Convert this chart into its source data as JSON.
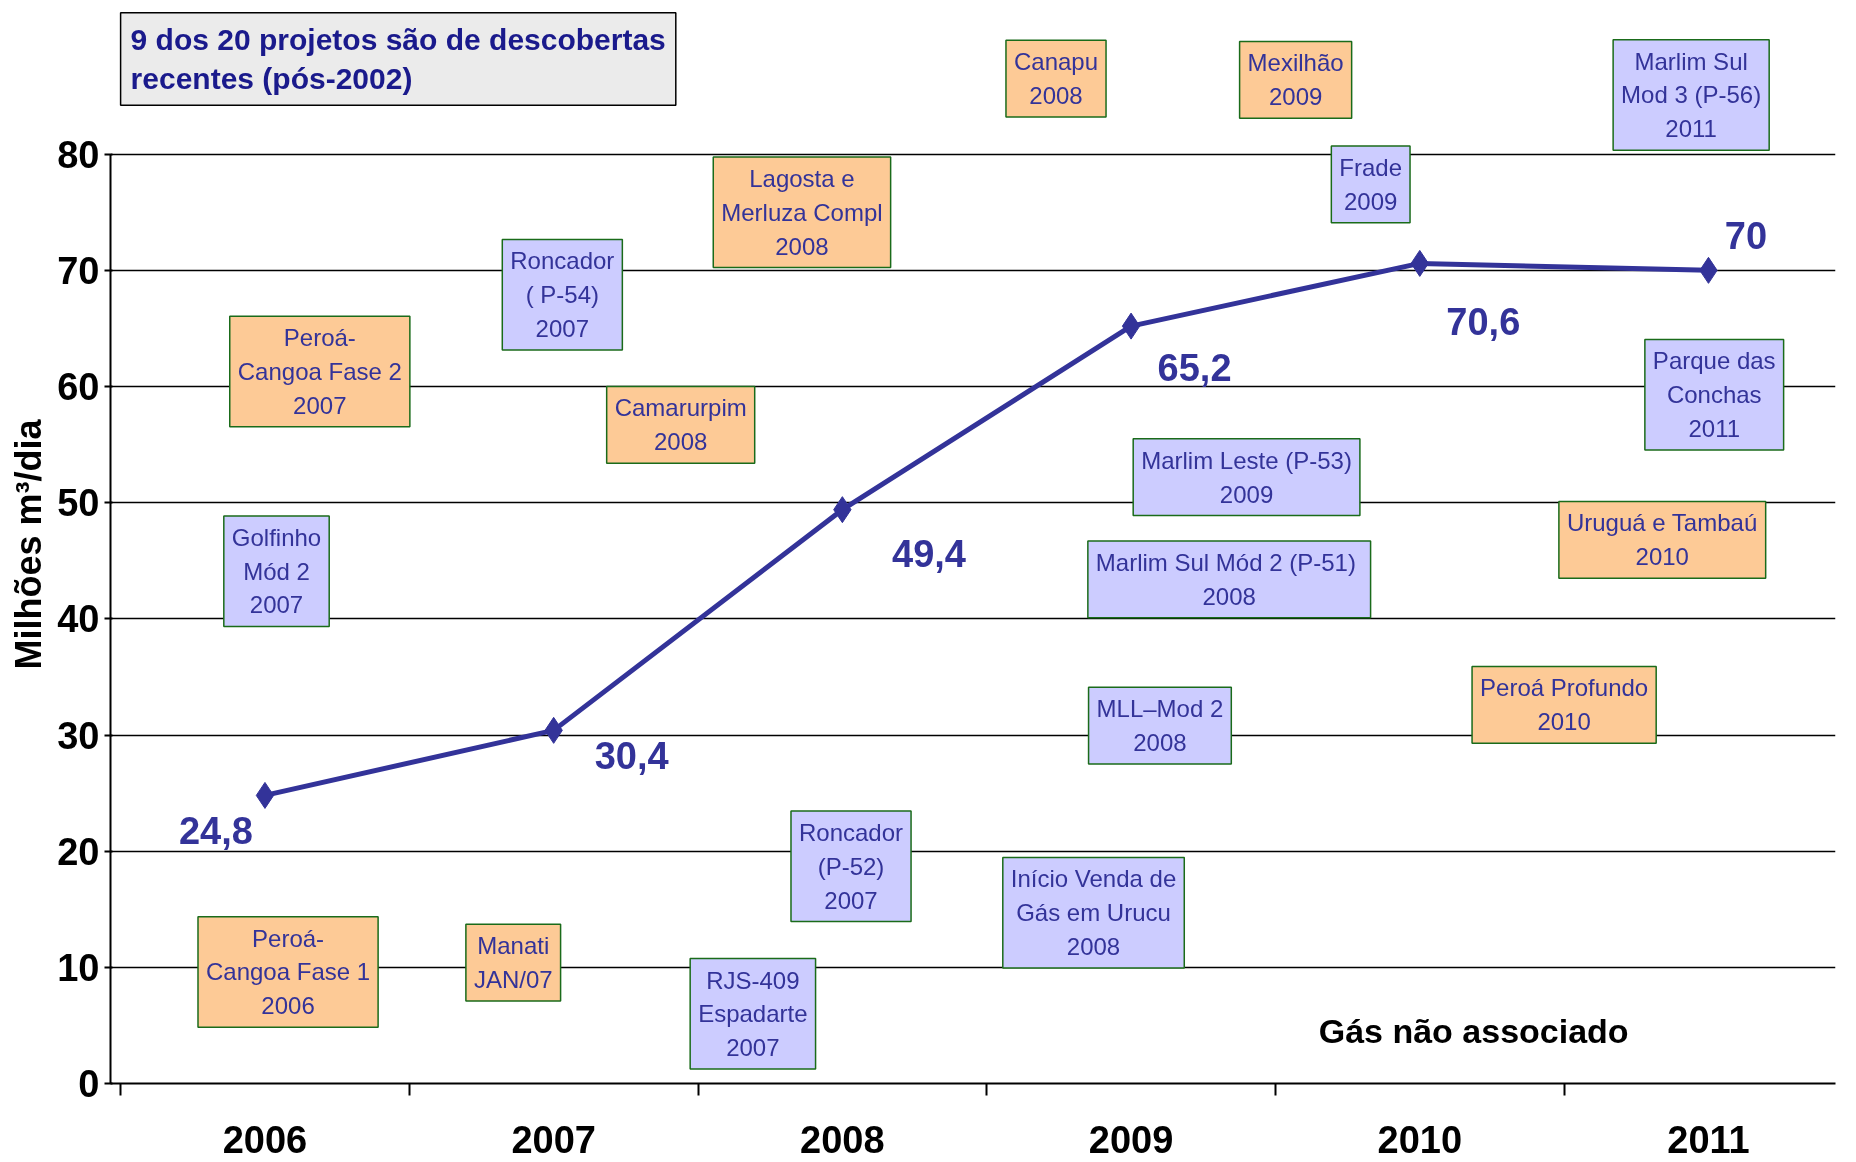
{
  "chart_data": {
    "type": "line",
    "categories": [
      "2006",
      "2007",
      "2008",
      "2009",
      "2010",
      "2011"
    ],
    "values": [
      24.8,
      30.4,
      49.4,
      65.2,
      70.6,
      70
    ],
    "value_labels": [
      "24,8",
      "30,4",
      "49,4",
      "65,2",
      "70,6",
      "70"
    ],
    "color": "#333399",
    "marker": "diamond",
    "grid": "y",
    "ylim": [
      0,
      80
    ],
    "yticks": [
      0,
      10,
      20,
      30,
      40,
      50,
      60,
      70,
      80
    ],
    "ylabel": "Milhões m³/dia",
    "annotations": [
      "9 dos 20 projetos são de descobertas\nrecentes (pós-2002)",
      "Gás não associado",
      "Peroá-\nCangoa Fase 1\n2006",
      "Golfinho\nMód 2\n2007",
      "Peroá-\nCangoa Fase 2\n2007",
      "Roncador\n( P-54)\n2007",
      "Manati\nJAN/07",
      "RJS-409\nEspadarte\n2007",
      "Roncador\n(P-52)\n2007",
      "Camarurpim\n2008",
      "Lagosta e\nMerluza Compl\n2008",
      "Canapu\n2008",
      "Início Venda de\nGás em Urucu\n2008",
      "MLL–Mod 2\n2008",
      "Marlim Sul  Mód 2 (P-51)\n2008",
      "Mexilhão\n2009",
      "Frade\n2009",
      "Marlim Leste (P-53)\n2009",
      "Peroá Profundo\n2010",
      "Uruguá e Tambaú\n2010",
      "Marlim Sul\nMod 3 (P-56)\n2011",
      "Parque das\nConchas\n2011"
    ]
  }
}
